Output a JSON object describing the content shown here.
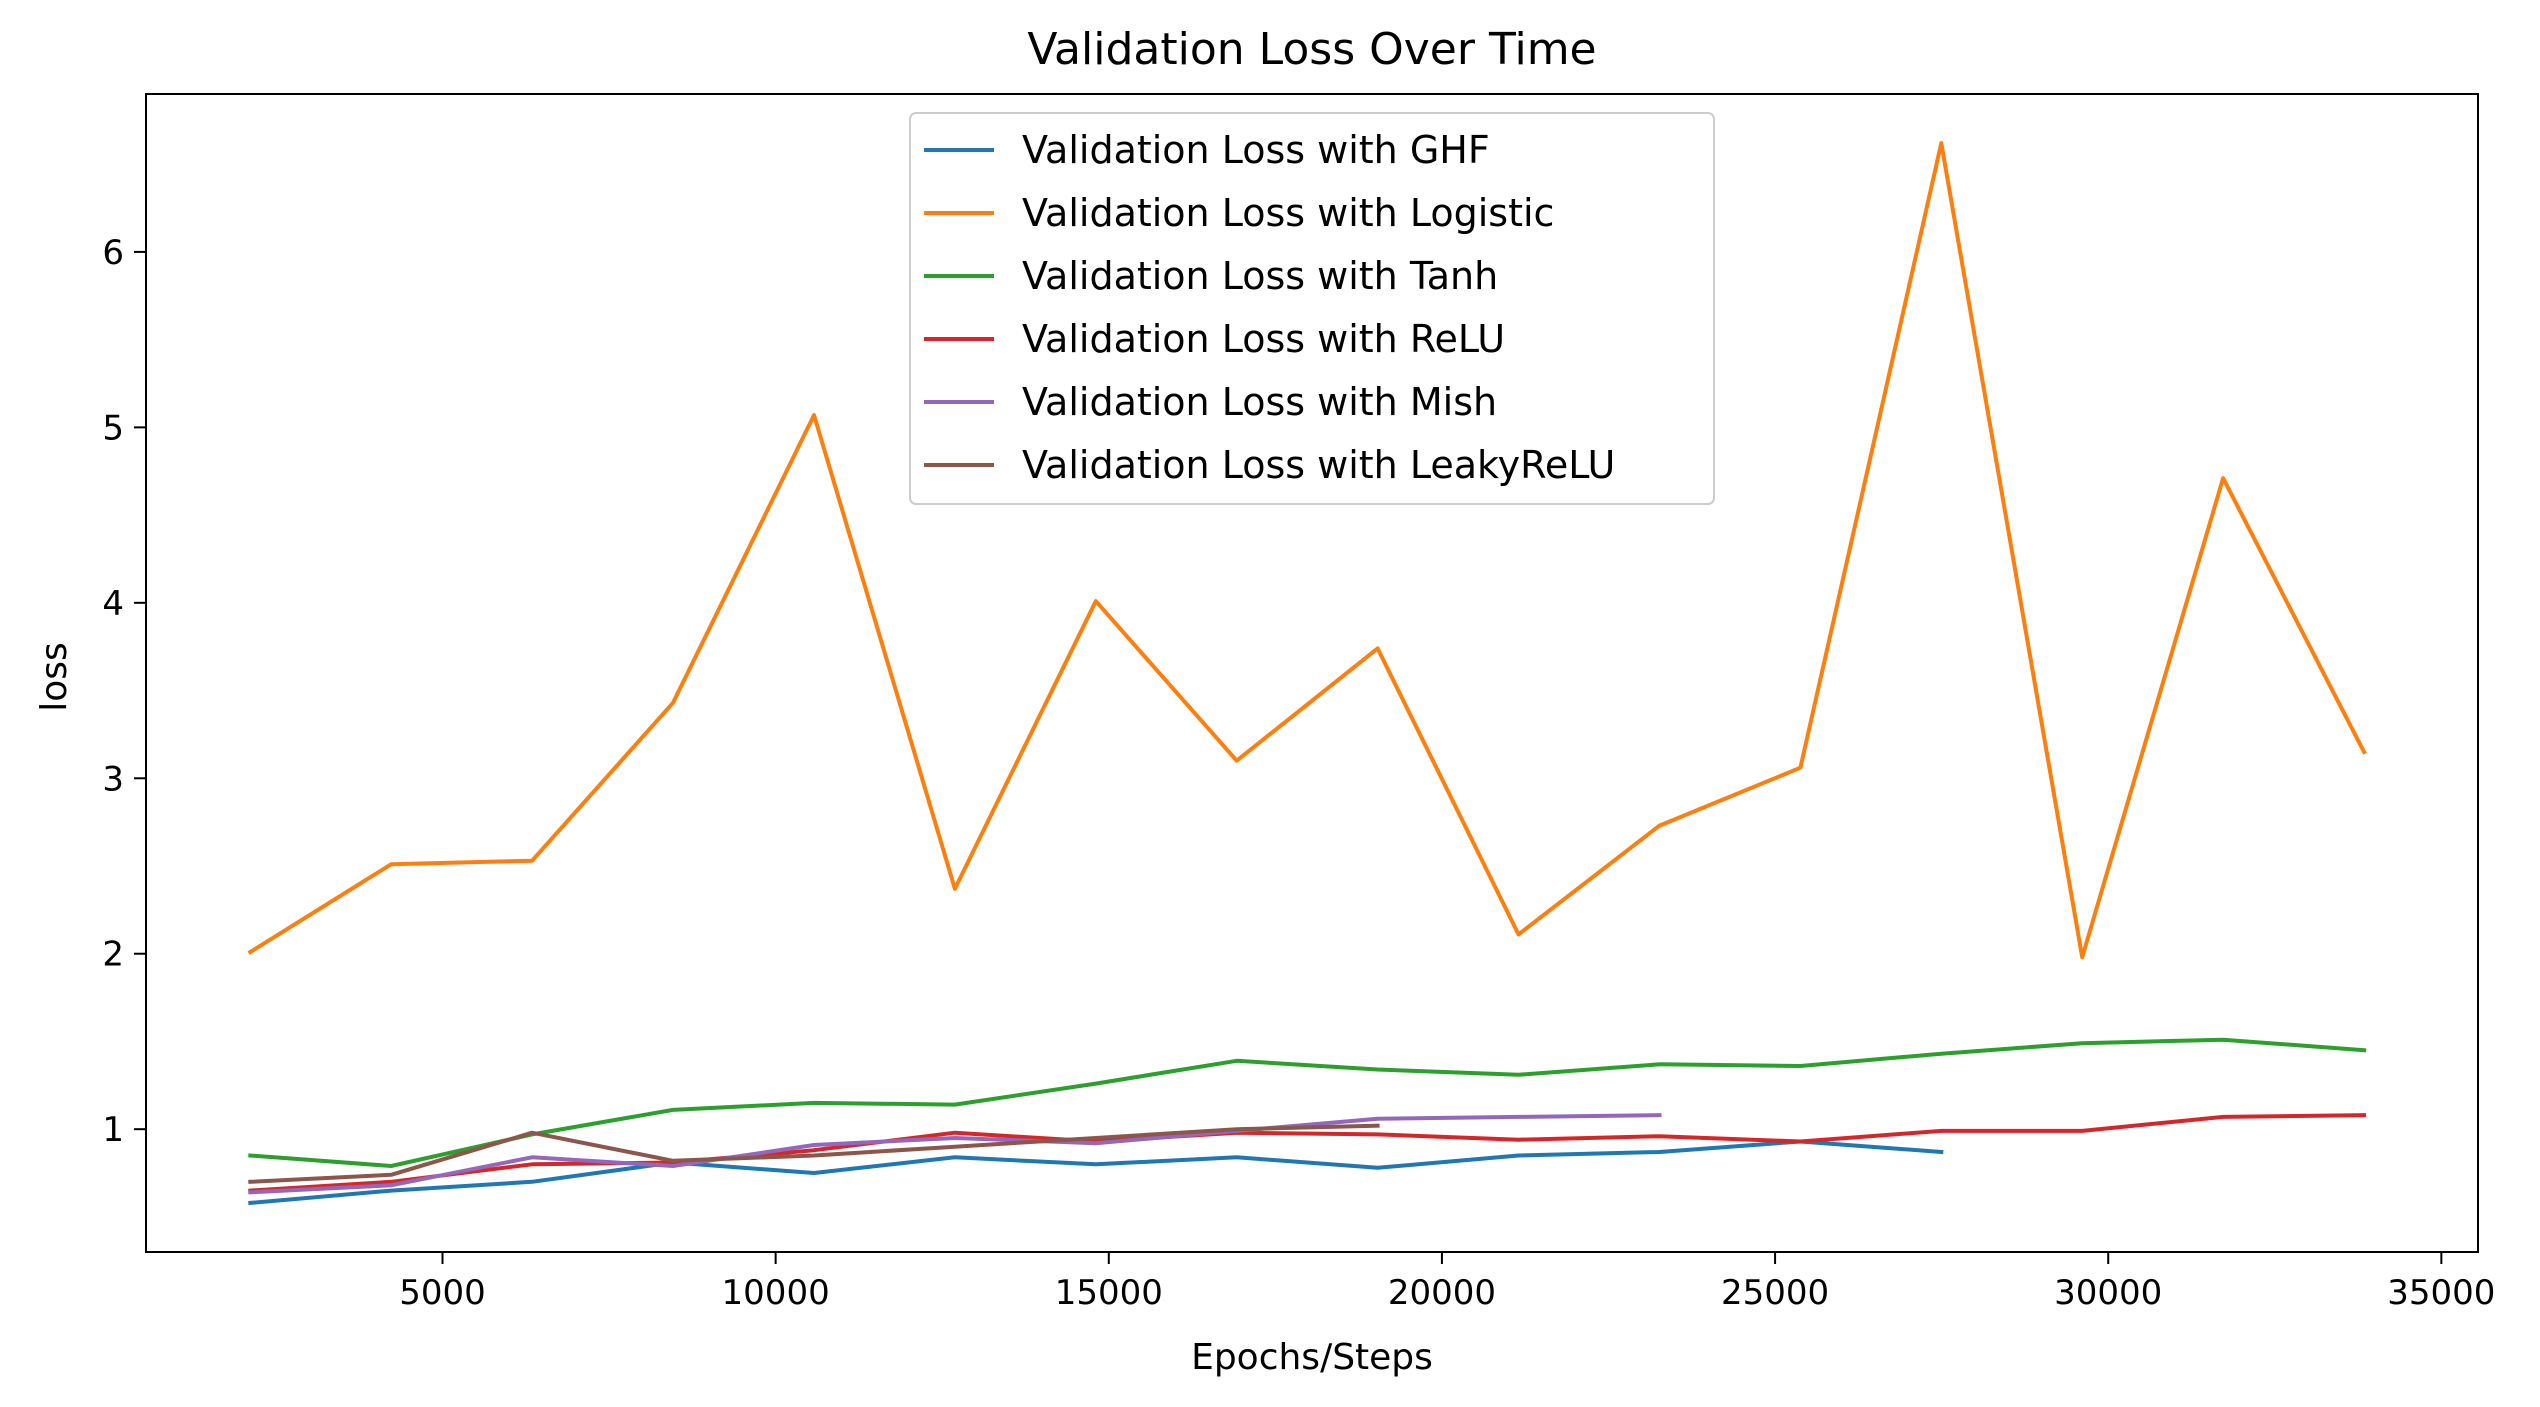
{
  "chart_data": {
    "type": "line",
    "title": "Validation Loss Over Time",
    "xlabel": "Epochs/Steps",
    "ylabel": "loss",
    "xlim": [
      550,
      35550
    ],
    "ylim": [
      0.3,
      6.9
    ],
    "xticks": [
      5000,
      10000,
      15000,
      20000,
      25000,
      30000,
      35000
    ],
    "yticks": [
      1,
      2,
      3,
      4,
      5,
      6
    ],
    "grid": false,
    "legend_position": "top-center",
    "series": [
      {
        "name": "Validation Loss with GHF",
        "color": "#1f77b4",
        "x": [
          2115,
          4230,
          6345,
          8460,
          10575,
          12690,
          14805,
          16920,
          19035,
          21150,
          23265,
          25380,
          27495
        ],
        "y": [
          0.58,
          0.65,
          0.7,
          0.81,
          0.75,
          0.84,
          0.8,
          0.84,
          0.78,
          0.85,
          0.87,
          0.93,
          0.87
        ]
      },
      {
        "name": "Validation Loss with Logistic",
        "color": "#ff7f0e",
        "x": [
          2115,
          4230,
          6345,
          8460,
          10575,
          12690,
          14805,
          16920,
          19035,
          21150,
          23265,
          25380,
          27495,
          29610,
          31725,
          33840
        ],
        "y": [
          2.01,
          2.51,
          2.53,
          3.43,
          5.07,
          2.37,
          4.01,
          3.1,
          3.74,
          2.11,
          2.73,
          3.06,
          6.62,
          1.98,
          4.71,
          3.15
        ]
      },
      {
        "name": "Validation Loss with Tanh",
        "color": "#2ca02c",
        "x": [
          2115,
          4230,
          6345,
          8460,
          10575,
          12690,
          14805,
          16920,
          19035,
          21150,
          23265,
          25380,
          27495,
          29610,
          31725,
          33840
        ],
        "y": [
          0.85,
          0.79,
          0.97,
          1.11,
          1.15,
          1.14,
          1.26,
          1.39,
          1.34,
          1.31,
          1.37,
          1.36,
          1.43,
          1.49,
          1.51,
          1.45
        ]
      },
      {
        "name": "Validation Loss with ReLU",
        "color": "#d62728",
        "x": [
          2115,
          4230,
          6345,
          8460,
          10575,
          12690,
          14805,
          16920,
          19035,
          21150,
          23265,
          25380,
          27495,
          29610,
          31725,
          33840
        ],
        "y": [
          0.65,
          0.7,
          0.8,
          0.81,
          0.88,
          0.98,
          0.93,
          0.98,
          0.97,
          0.94,
          0.96,
          0.93,
          0.99,
          0.99,
          1.07,
          1.08
        ]
      },
      {
        "name": "Validation Loss with Mish",
        "color": "#9467bd",
        "x": [
          2115,
          4230,
          6345,
          8460,
          10575,
          12690,
          14805,
          16920,
          19035,
          21150,
          23265
        ],
        "y": [
          0.64,
          0.68,
          0.84,
          0.79,
          0.91,
          0.95,
          0.92,
          0.99,
          1.06,
          1.07,
          1.08
        ]
      },
      {
        "name": "Validation Loss with LeakyReLU",
        "color": "#8c564b",
        "x": [
          2115,
          4230,
          6345,
          8460,
          10575,
          12690,
          14805,
          16920,
          19035
        ],
        "y": [
          0.7,
          0.74,
          0.98,
          0.82,
          0.85,
          0.9,
          0.95,
          1.0,
          1.02
        ]
      }
    ]
  }
}
